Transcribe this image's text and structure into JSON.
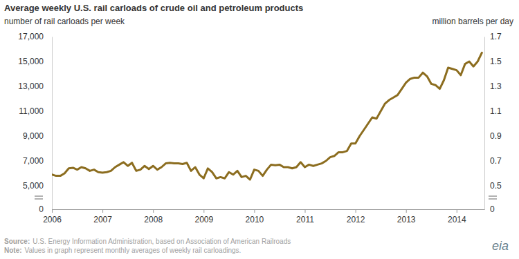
{
  "chart_data": {
    "type": "line",
    "title": "Average weekly U.S. rail carloads of crude oil and petroleum products",
    "y_label": "number of rail carloads per week",
    "y2_label": "million barrels  per day",
    "source_label": "Source:",
    "source": "U.S. Energy Information Administration, based on Association of American Railroads",
    "note_label": "Note:",
    "note": "Values in graph represent monthly averages of weekly rail carloadings.",
    "logo": "eia",
    "color": "#8c6d1f",
    "grid": false,
    "xlim": [
      2006,
      2014.55
    ],
    "xticks": [
      2006,
      2007,
      2008,
      2009,
      2010,
      2011,
      2012,
      2013,
      2014
    ],
    "ylim": [
      0,
      17000
    ],
    "yticks": [
      0,
      {
        "value": 5000,
        "label": "5,000"
      },
      {
        "value": 7000,
        "label": "7,000"
      },
      {
        "value": 9000,
        "label": "9,000"
      },
      {
        "value": 11000,
        "label": "11,000"
      },
      {
        "value": 13000,
        "label": "13,000"
      },
      {
        "value": 15000,
        "label": "15,000"
      },
      {
        "value": 17000,
        "label": "17,000"
      }
    ],
    "y2lim": [
      0,
      1.7
    ],
    "y2ticks": [
      0,
      0.5,
      0.7,
      0.9,
      1.1,
      1.3,
      1.5,
      1.7
    ],
    "x": [
      2006.0,
      2006.083,
      2006.167,
      2006.25,
      2006.333,
      2006.417,
      2006.5,
      2006.583,
      2006.667,
      2006.75,
      2006.833,
      2006.917,
      2007.0,
      2007.083,
      2007.167,
      2007.25,
      2007.333,
      2007.417,
      2007.5,
      2007.583,
      2007.667,
      2007.75,
      2007.833,
      2007.917,
      2008.0,
      2008.083,
      2008.167,
      2008.25,
      2008.333,
      2008.417,
      2008.5,
      2008.583,
      2008.667,
      2008.75,
      2008.833,
      2008.917,
      2009.0,
      2009.083,
      2009.167,
      2009.25,
      2009.333,
      2009.417,
      2009.5,
      2009.583,
      2009.667,
      2009.75,
      2009.833,
      2009.917,
      2010.0,
      2010.083,
      2010.167,
      2010.25,
      2010.333,
      2010.417,
      2010.5,
      2010.583,
      2010.667,
      2010.75,
      2010.833,
      2010.917,
      2011.0,
      2011.083,
      2011.167,
      2011.25,
      2011.333,
      2011.417,
      2011.5,
      2011.583,
      2011.667,
      2011.75,
      2011.833,
      2011.917,
      2012.0,
      2012.083,
      2012.167,
      2012.25,
      2012.333,
      2012.417,
      2012.5,
      2012.583,
      2012.667,
      2012.75,
      2012.833,
      2012.917,
      2013.0,
      2013.083,
      2013.167,
      2013.25,
      2013.333,
      2013.417,
      2013.5,
      2013.583,
      2013.667,
      2013.75,
      2013.833,
      2013.917,
      2014.0,
      2014.083,
      2014.167,
      2014.25,
      2014.333,
      2014.417,
      2014.5
    ],
    "values": [
      5900,
      5800,
      5800,
      6000,
      6400,
      6450,
      6300,
      6500,
      6400,
      6200,
      6300,
      6100,
      6050,
      6100,
      6200,
      6500,
      6700,
      6900,
      6600,
      6850,
      6200,
      6300,
      6600,
      6350,
      6600,
      6300,
      6500,
      6800,
      6850,
      6800,
      6800,
      6750,
      6850,
      6200,
      6500,
      5900,
      5600,
      6400,
      6100,
      5600,
      5700,
      5600,
      6100,
      5900,
      6200,
      5700,
      5800,
      5500,
      6300,
      6200,
      5800,
      6300,
      6700,
      6650,
      6700,
      6500,
      6500,
      6400,
      6500,
      6900,
      6500,
      6700,
      6600,
      6700,
      6800,
      7000,
      7300,
      7400,
      7700,
      7700,
      7800,
      8400,
      8400,
      9000,
      9500,
      10000,
      10500,
      10400,
      11000,
      11600,
      11900,
      12100,
      12300,
      12800,
      13300,
      13600,
      13700,
      13700,
      14100,
      13800,
      13200,
      13100,
      12800,
      13500,
      14500,
      14400,
      14300,
      13900,
      14800,
      15000,
      14600,
      15000,
      15700
    ]
  }
}
